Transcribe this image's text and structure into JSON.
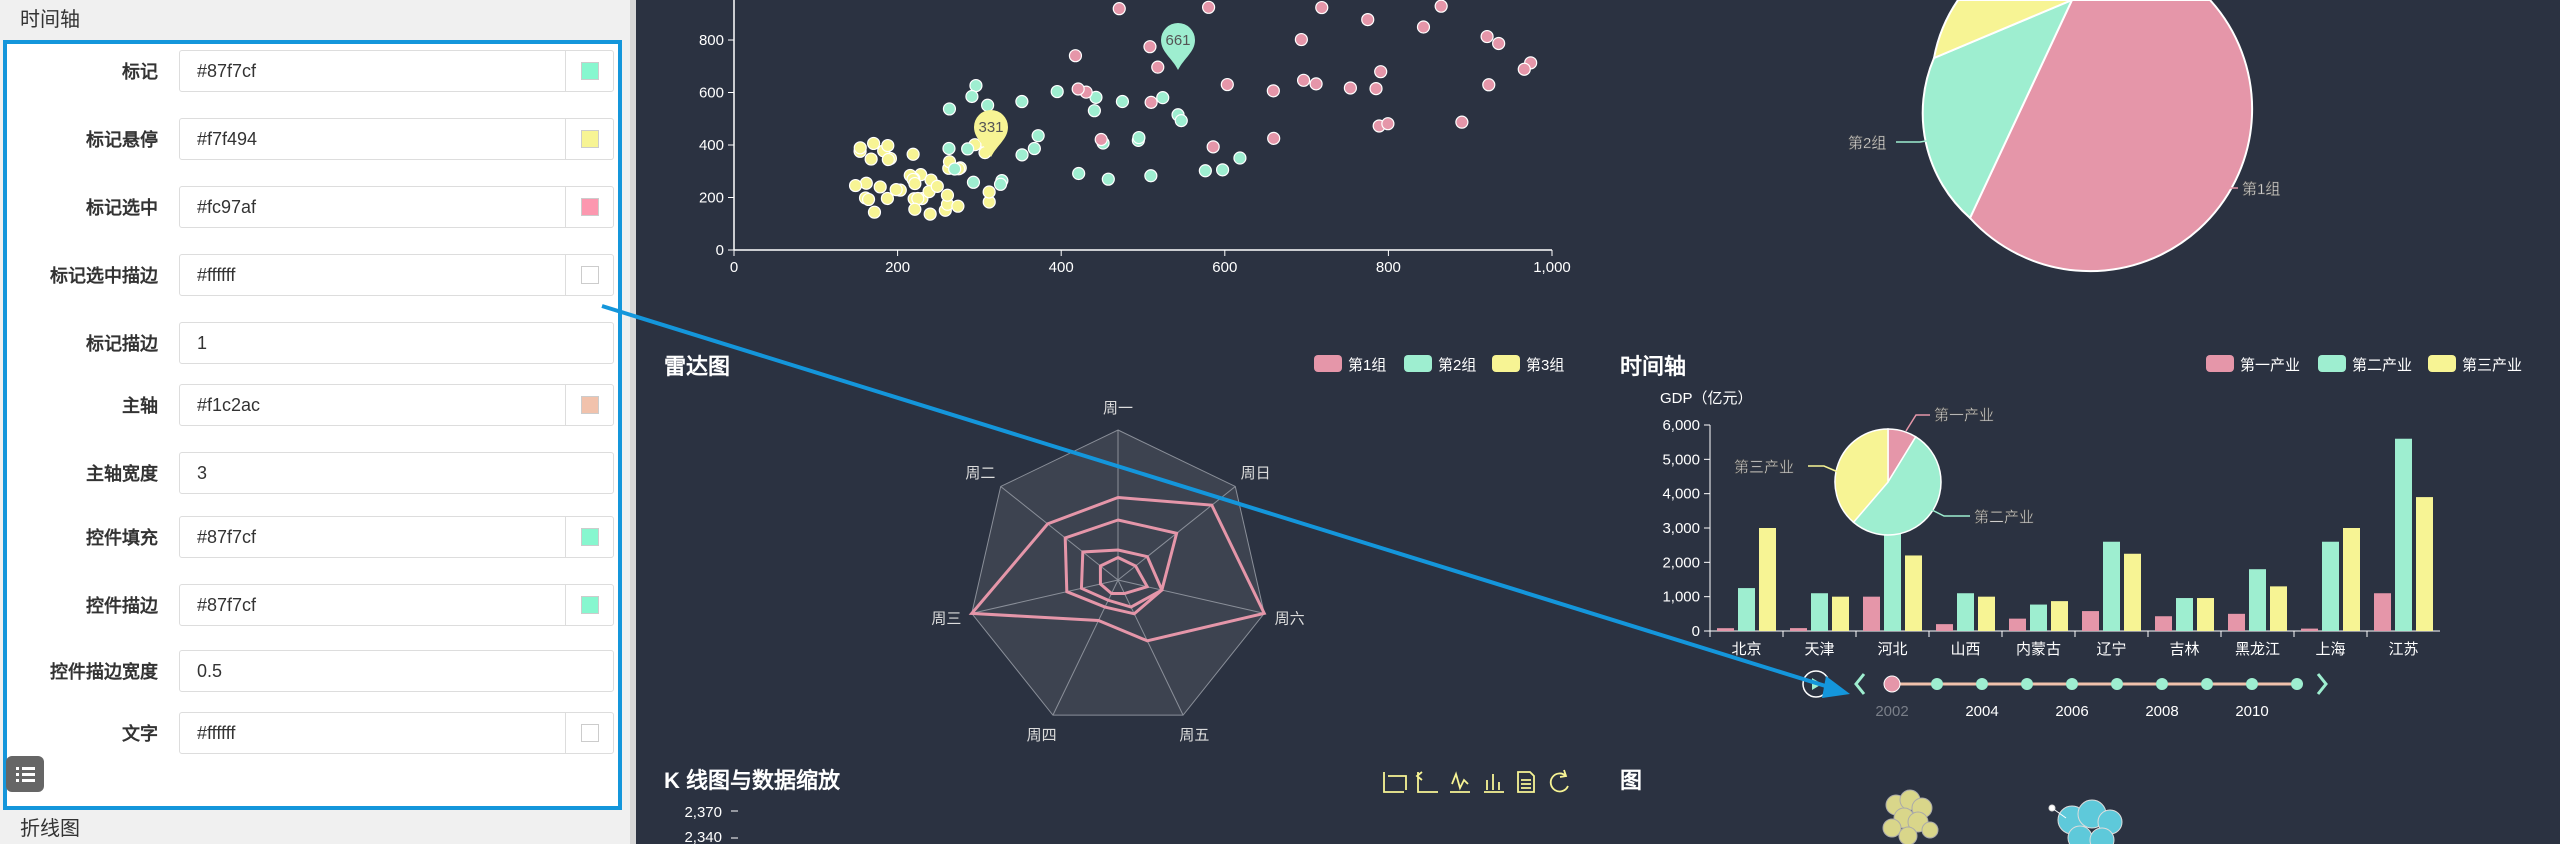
{
  "panel": {
    "title": "时间轴",
    "footer": "折线图",
    "rows": [
      {
        "label": "标记",
        "value": "#87f7cf",
        "swatch": "#87f7cf"
      },
      {
        "label": "标记悬停",
        "value": "#f7f494",
        "swatch": "#f7f494"
      },
      {
        "label": "标记选中",
        "value": "#fc97af",
        "swatch": "#fc97af"
      },
      {
        "label": "标记选中描边",
        "value": "#ffffff",
        "swatch": "#ffffff"
      },
      {
        "label": "标记描边",
        "value": "1"
      },
      {
        "label": "主轴",
        "value": "#f1c2ac",
        "swatch": "#f1c2ac"
      },
      {
        "label": "主轴宽度",
        "value": "3"
      },
      {
        "label": "控件填充",
        "value": "#87f7cf",
        "swatch": "#87f7cf"
      },
      {
        "label": "控件描边",
        "value": "#87f7cf",
        "swatch": "#87f7cf"
      },
      {
        "label": "控件描边宽度",
        "value": "0.5"
      },
      {
        "label": "文字",
        "value": "#ffffff",
        "swatch": "#ffffff"
      }
    ]
  },
  "colors": {
    "pink": "#e596a9",
    "green": "#9eeed0",
    "yellow": "#f7f494",
    "bg": "#2b3241",
    "accent": "#1496db"
  },
  "scatter": {
    "yticks": [
      "0",
      "200",
      "400",
      "600",
      "800"
    ],
    "xticks": [
      "0",
      "200",
      "400",
      "600",
      "800",
      "1,000"
    ],
    "pin_green": "661",
    "pin_yellow": "331"
  },
  "pie_top": {
    "labels": [
      "第1组",
      "第2组"
    ]
  },
  "radar": {
    "title": "雷达图",
    "legend": [
      "第1组",
      "第2组",
      "第3组"
    ],
    "axes": [
      "周一",
      "周日",
      "周六",
      "周五",
      "周四",
      "周三",
      "周二"
    ]
  },
  "timeline": {
    "title": "时间轴",
    "legend": [
      "第一产业",
      "第二产业",
      "第三产业"
    ],
    "ylabel": "GDP（亿元）",
    "yticks": [
      "0",
      "1,000",
      "2,000",
      "3,000",
      "4,000",
      "5,000",
      "6,000"
    ],
    "pie_labels": [
      "第一产业",
      "第三产业",
      "第二产业"
    ],
    "years": [
      "2002",
      "2004",
      "2006",
      "2008",
      "2010"
    ]
  },
  "chart_data": {
    "type": "bar",
    "title": "时间轴",
    "ylabel": "GDP（亿元）",
    "ylim": [
      0,
      6000
    ],
    "categories": [
      "北京",
      "天津",
      "河北",
      "山西",
      "内蒙古",
      "辽宁",
      "吉林",
      "黑龙江",
      "上海",
      "江苏"
    ],
    "series": [
      {
        "name": "第一产业",
        "values": [
          82,
          84,
          1000,
          200,
          360,
          580,
          430,
          500,
          70,
          1100
        ]
      },
      {
        "name": "第二产业",
        "values": [
          1250,
          1100,
          3000,
          1100,
          770,
          2600,
          960,
          1800,
          2600,
          5600
        ]
      },
      {
        "name": "第三产业",
        "values": [
          3000,
          1000,
          2200,
          1000,
          870,
          2250,
          960,
          1300,
          3000,
          3900
        ]
      }
    ]
  },
  "kline": {
    "title": "K 线图与数据缩放",
    "yticks": [
      "2,370",
      "2,340"
    ]
  },
  "graph": {
    "title": "图"
  }
}
